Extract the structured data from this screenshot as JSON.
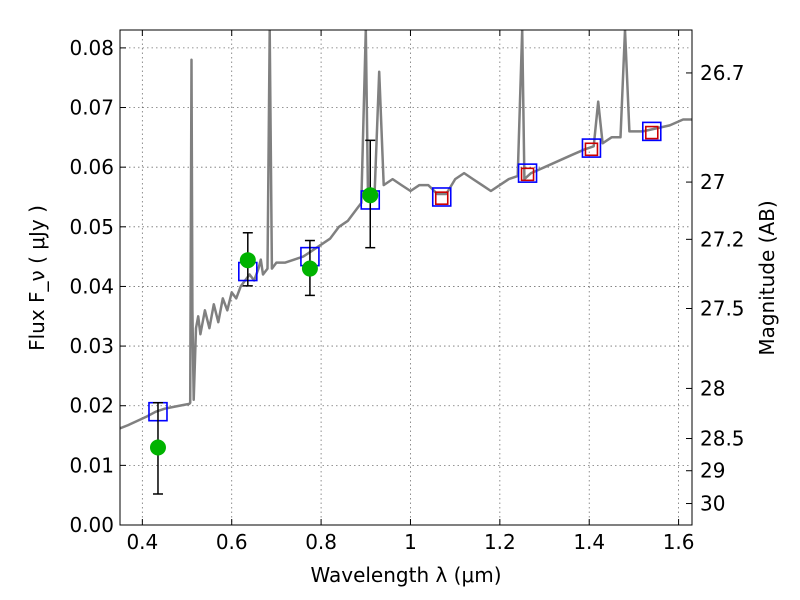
{
  "chart_data": {
    "type": "scatter",
    "xlabel": "Wavelength  λ (μm)",
    "ylabel_left": "Flux  F_ν  ( μJy )",
    "ylabel_right": "Magnitude (AB)",
    "xlim": [
      0.35,
      1.63
    ],
    "ylim": [
      0.0,
      0.083
    ],
    "grid": true,
    "x_ticks": [
      0.4,
      0.6,
      0.8,
      1.0,
      1.2,
      1.4,
      1.6
    ],
    "x_tick_labels": [
      "0.4",
      "0.6",
      "0.8",
      "1",
      "1.2",
      "1.4",
      "1.6"
    ],
    "y_ticks": [
      0.0,
      0.01,
      0.02,
      0.03,
      0.04,
      0.05,
      0.06,
      0.07,
      0.08
    ],
    "y_tick_labels": [
      "0.00",
      "0.01",
      "0.02",
      "0.03",
      "0.04",
      "0.05",
      "0.06",
      "0.07",
      "0.08"
    ],
    "right_ticks": [
      {
        "label": "26.7",
        "flux": 0.0758
      },
      {
        "label": "27",
        "flux": 0.0575
      },
      {
        "label": "27.2",
        "flux": 0.0479
      },
      {
        "label": "27.5",
        "flux": 0.0363
      },
      {
        "label": "28",
        "flux": 0.0229
      },
      {
        "label": "28.5",
        "flux": 0.0145
      },
      {
        "label": "29",
        "flux": 0.0091
      },
      {
        "label": "30",
        "flux": 0.0036
      }
    ],
    "colors": {
      "spectrum": "#808080",
      "blue_squares": "#0000ff",
      "red_squares": "#cc0000",
      "green_points": "#00b300",
      "error_bars": "#000000"
    },
    "series": [
      {
        "type": "line",
        "points": [
          [
            0.35,
            0.0162
          ],
          [
            0.37,
            0.0168
          ],
          [
            0.39,
            0.0175
          ],
          [
            0.41,
            0.0182
          ],
          [
            0.43,
            0.019
          ],
          [
            0.45,
            0.0195
          ],
          [
            0.47,
            0.0198
          ],
          [
            0.49,
            0.0201
          ],
          [
            0.505,
            0.0203
          ],
          [
            0.507,
            0.0205
          ],
          [
            0.51,
            0.078
          ],
          [
            0.512,
            0.036
          ],
          [
            0.515,
            0.021
          ],
          [
            0.52,
            0.033
          ],
          [
            0.525,
            0.035
          ],
          [
            0.53,
            0.032
          ],
          [
            0.54,
            0.036
          ],
          [
            0.55,
            0.033
          ],
          [
            0.56,
            0.037
          ],
          [
            0.57,
            0.034
          ],
          [
            0.58,
            0.038
          ],
          [
            0.59,
            0.036
          ],
          [
            0.6,
            0.039
          ],
          [
            0.61,
            0.038
          ],
          [
            0.62,
            0.04
          ],
          [
            0.63,
            0.041
          ],
          [
            0.64,
            0.042
          ],
          [
            0.65,
            0.041
          ],
          [
            0.66,
            0.043
          ],
          [
            0.665,
            0.0445
          ],
          [
            0.67,
            0.042
          ],
          [
            0.68,
            0.043
          ],
          [
            0.685,
            0.083
          ],
          [
            0.69,
            0.043
          ],
          [
            0.7,
            0.044
          ],
          [
            0.72,
            0.044
          ],
          [
            0.74,
            0.0445
          ],
          [
            0.76,
            0.045
          ],
          [
            0.78,
            0.046
          ],
          [
            0.8,
            0.047
          ],
          [
            0.82,
            0.048
          ],
          [
            0.84,
            0.05
          ],
          [
            0.86,
            0.051
          ],
          [
            0.88,
            0.053
          ],
          [
            0.89,
            0.054
          ],
          [
            0.9,
            0.083
          ],
          [
            0.905,
            0.055
          ],
          [
            0.92,
            0.056
          ],
          [
            0.93,
            0.076
          ],
          [
            0.94,
            0.057
          ],
          [
            0.96,
            0.058
          ],
          [
            0.98,
            0.057
          ],
          [
            1.0,
            0.056
          ],
          [
            1.02,
            0.057
          ],
          [
            1.04,
            0.057
          ],
          [
            1.06,
            0.0555
          ],
          [
            1.08,
            0.0555
          ],
          [
            1.1,
            0.058
          ],
          [
            1.12,
            0.059
          ],
          [
            1.14,
            0.058
          ],
          [
            1.16,
            0.057
          ],
          [
            1.18,
            0.056
          ],
          [
            1.2,
            0.057
          ],
          [
            1.22,
            0.058
          ],
          [
            1.24,
            0.0585
          ],
          [
            1.25,
            0.083
          ],
          [
            1.255,
            0.058
          ],
          [
            1.27,
            0.059
          ],
          [
            1.3,
            0.06
          ],
          [
            1.33,
            0.061
          ],
          [
            1.36,
            0.062
          ],
          [
            1.39,
            0.063
          ],
          [
            1.41,
            0.0635
          ],
          [
            1.42,
            0.071
          ],
          [
            1.43,
            0.064
          ],
          [
            1.45,
            0.065
          ],
          [
            1.47,
            0.065
          ],
          [
            1.48,
            0.083
          ],
          [
            1.49,
            0.066
          ],
          [
            1.52,
            0.066
          ],
          [
            1.55,
            0.0665
          ],
          [
            1.58,
            0.067
          ],
          [
            1.61,
            0.068
          ],
          [
            1.63,
            0.068
          ]
        ]
      },
      {
        "type": "open-square",
        "color": "blue",
        "points": [
          [
            0.435,
            0.019
          ],
          [
            0.636,
            0.0425
          ],
          [
            0.775,
            0.045
          ],
          [
            0.91,
            0.0545
          ],
          [
            1.07,
            0.055
          ],
          [
            1.262,
            0.059
          ],
          [
            1.405,
            0.0632
          ],
          [
            1.54,
            0.066
          ]
        ]
      },
      {
        "type": "open-square",
        "color": "red",
        "points": [
          [
            1.07,
            0.0548
          ],
          [
            1.262,
            0.0588
          ],
          [
            1.405,
            0.063
          ],
          [
            1.54,
            0.0658
          ]
        ]
      },
      {
        "type": "filled-circle-errorbar",
        "color": "green",
        "points": [
          {
            "x": 0.435,
            "y": 0.013,
            "ylow": 0.0052,
            "yhigh": 0.0205
          },
          {
            "x": 0.636,
            "y": 0.0444,
            "ylow": 0.0401,
            "yhigh": 0.049
          },
          {
            "x": 0.775,
            "y": 0.043,
            "ylow": 0.0385,
            "yhigh": 0.0477
          },
          {
            "x": 0.91,
            "y": 0.0553,
            "ylow": 0.0465,
            "yhigh": 0.0645
          }
        ]
      }
    ]
  }
}
